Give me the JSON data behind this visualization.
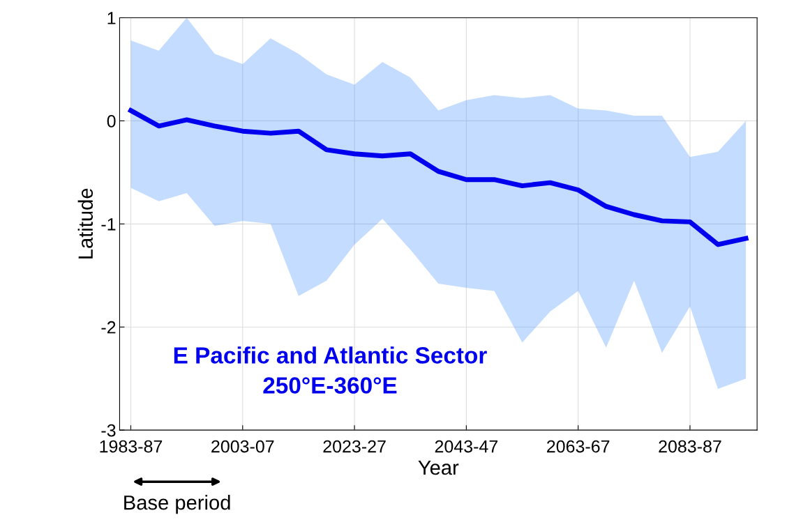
{
  "chart_data": {
    "type": "line",
    "xlabel": "Year",
    "ylabel": "Latitude",
    "categories": [
      "1983-87",
      null,
      null,
      null,
      "2003-07",
      null,
      null,
      null,
      "2023-27",
      null,
      null,
      null,
      "2043-47",
      null,
      null,
      null,
      "2063-67",
      null,
      null,
      null,
      "2083-87",
      null,
      null
    ],
    "series": [
      {
        "color": "#0000ee",
        "values": [
          0.1,
          -0.05,
          0.01,
          -0.05,
          -0.1,
          -0.12,
          -0.1,
          -0.28,
          -0.32,
          -0.34,
          -0.32,
          -0.49,
          -0.57,
          -0.57,
          -0.63,
          -0.6,
          -0.67,
          -0.83,
          -0.91,
          -0.97,
          -0.98,
          -1.2,
          -1.14
        ],
        "lower": [
          -0.65,
          -0.78,
          -0.7,
          -1.02,
          -0.97,
          -1.0,
          -1.7,
          -1.55,
          -1.2,
          -0.95,
          -1.25,
          -1.58,
          -1.62,
          -1.65,
          -2.15,
          -1.85,
          -1.65,
          -2.2,
          -1.55,
          -2.25,
          -1.8,
          -2.6,
          -2.5
        ],
        "upper": [
          0.78,
          0.68,
          1.0,
          0.65,
          0.55,
          0.8,
          0.65,
          0.45,
          0.35,
          0.57,
          0.42,
          0.1,
          0.2,
          0.25,
          0.22,
          0.25,
          0.12,
          0.1,
          0.05,
          0.05,
          -0.35,
          -0.3,
          0.0
        ]
      }
    ],
    "ylim": [
      -3,
      1
    ],
    "yticks": [
      -3,
      -2,
      -1,
      0,
      1
    ],
    "grid": true,
    "annotations": [
      "E Pacific and Atlantic Sector\n250°E-360°E",
      "Base period"
    ]
  }
}
